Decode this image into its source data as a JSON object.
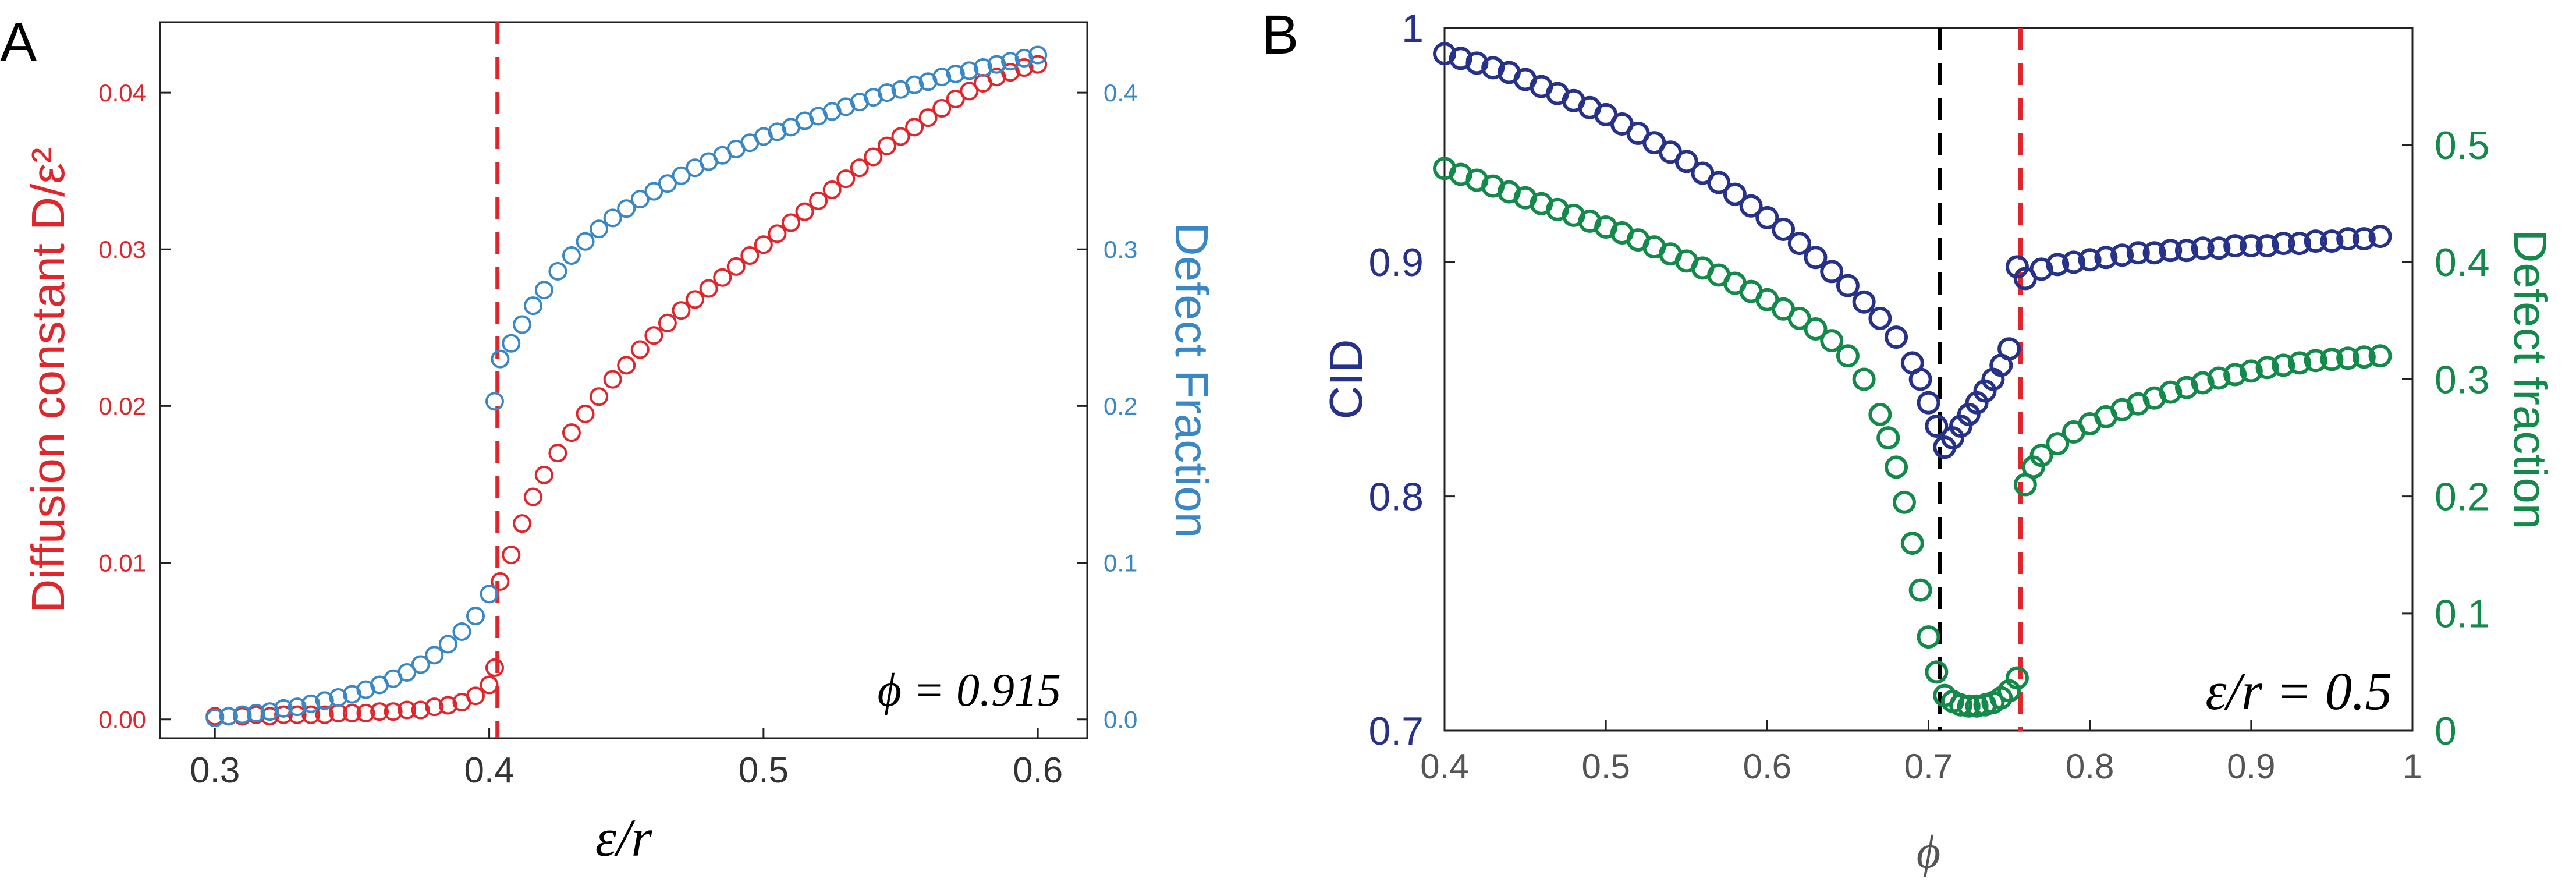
{
  "figure": {
    "panel_a_label": "A",
    "panel_b_label": "B"
  },
  "colors": {
    "red": "#e0262b",
    "blue": "#3a87c6",
    "navy": "#26328a",
    "green": "#13894a",
    "black": "#000000",
    "axis_gray": "#4a4a4a"
  },
  "chart_data": [
    {
      "type": "scatter",
      "panel": "A",
      "xlabel": "ε/r",
      "ylabel_left": "Diffusion constant  D/ε²",
      "ylabel_right": "Defect Fraction",
      "annotation": "ϕ = 0.915",
      "xlim": [
        0.28,
        0.618
      ],
      "ylim_left": [
        -0.0012,
        0.0445
      ],
      "ylim_right": [
        -0.012,
        0.445
      ],
      "x_ticks": [
        0.3,
        0.4,
        0.5,
        0.6
      ],
      "x_tick_labels": [
        "0.3",
        "0.4",
        "0.5",
        "0.6"
      ],
      "y_left_ticks": [
        0.0,
        0.01,
        0.02,
        0.03,
        0.04
      ],
      "y_left_tick_labels": [
        "0.00",
        "0.01",
        "0.02",
        "0.03",
        "0.04"
      ],
      "y_right_ticks": [
        0.0,
        0.1,
        0.2,
        0.3,
        0.4
      ],
      "y_right_tick_labels": [
        "0.0",
        "0.1",
        "0.2",
        "0.3",
        "0.4"
      ],
      "vline": {
        "x": 0.403,
        "color": "red",
        "style": "dashed"
      },
      "series": [
        {
          "name": "Diffusion constant D/ε²",
          "axis": "left",
          "color": "red",
          "x": [
            0.3,
            0.305,
            0.31,
            0.315,
            0.32,
            0.325,
            0.33,
            0.335,
            0.34,
            0.345,
            0.35,
            0.355,
            0.36,
            0.365,
            0.37,
            0.375,
            0.38,
            0.385,
            0.39,
            0.395,
            0.4,
            0.402,
            0.404,
            0.408,
            0.412,
            0.416,
            0.42,
            0.425,
            0.43,
            0.435,
            0.44,
            0.445,
            0.45,
            0.455,
            0.46,
            0.465,
            0.47,
            0.475,
            0.48,
            0.485,
            0.49,
            0.495,
            0.5,
            0.505,
            0.51,
            0.515,
            0.52,
            0.525,
            0.53,
            0.535,
            0.54,
            0.545,
            0.55,
            0.555,
            0.56,
            0.565,
            0.57,
            0.575,
            0.58,
            0.585,
            0.59,
            0.595,
            0.6
          ],
          "values": [
            0.0002,
            0.0002,
            0.0002,
            0.0003,
            0.0002,
            0.0003,
            0.0003,
            0.0003,
            0.0003,
            0.0004,
            0.0004,
            0.0004,
            0.0005,
            0.0005,
            0.0006,
            0.0006,
            0.0008,
            0.0009,
            0.0011,
            0.0015,
            0.0022,
            0.0033,
            0.0088,
            0.0105,
            0.0125,
            0.0142,
            0.0156,
            0.017,
            0.0183,
            0.0195,
            0.0206,
            0.0217,
            0.0226,
            0.0236,
            0.0245,
            0.0253,
            0.0261,
            0.0268,
            0.0275,
            0.0282,
            0.0289,
            0.0296,
            0.0303,
            0.031,
            0.0317,
            0.0324,
            0.0331,
            0.0338,
            0.0345,
            0.0352,
            0.0359,
            0.0366,
            0.0372,
            0.0378,
            0.0384,
            0.039,
            0.0396,
            0.0401,
            0.0406,
            0.041,
            0.0413,
            0.0416,
            0.0418
          ]
        },
        {
          "name": "Defect Fraction",
          "axis": "right",
          "color": "blue",
          "x": [
            0.3,
            0.305,
            0.31,
            0.315,
            0.32,
            0.325,
            0.33,
            0.335,
            0.34,
            0.345,
            0.35,
            0.355,
            0.36,
            0.365,
            0.37,
            0.375,
            0.38,
            0.385,
            0.39,
            0.395,
            0.4,
            0.402,
            0.404,
            0.408,
            0.412,
            0.416,
            0.42,
            0.425,
            0.43,
            0.435,
            0.44,
            0.445,
            0.45,
            0.455,
            0.46,
            0.465,
            0.47,
            0.475,
            0.48,
            0.485,
            0.49,
            0.495,
            0.5,
            0.505,
            0.51,
            0.515,
            0.52,
            0.525,
            0.53,
            0.535,
            0.54,
            0.545,
            0.55,
            0.555,
            0.56,
            0.565,
            0.57,
            0.575,
            0.58,
            0.585,
            0.59,
            0.595,
            0.6
          ],
          "values": [
            0.001,
            0.002,
            0.003,
            0.004,
            0.005,
            0.007,
            0.008,
            0.01,
            0.012,
            0.014,
            0.016,
            0.019,
            0.022,
            0.026,
            0.03,
            0.035,
            0.041,
            0.048,
            0.056,
            0.066,
            0.08,
            0.203,
            0.23,
            0.24,
            0.252,
            0.264,
            0.274,
            0.286,
            0.296,
            0.305,
            0.313,
            0.32,
            0.326,
            0.332,
            0.337,
            0.342,
            0.347,
            0.352,
            0.356,
            0.36,
            0.364,
            0.368,
            0.372,
            0.375,
            0.378,
            0.382,
            0.385,
            0.388,
            0.391,
            0.394,
            0.397,
            0.4,
            0.402,
            0.405,
            0.407,
            0.41,
            0.412,
            0.414,
            0.416,
            0.418,
            0.42,
            0.422,
            0.424
          ]
        }
      ]
    },
    {
      "type": "scatter",
      "panel": "B",
      "xlabel": "ϕ",
      "ylabel_left": "CID",
      "ylabel_right": "Defect fraction",
      "annotation": "ε/r = 0.5",
      "xlim": [
        0.4,
        1.0
      ],
      "ylim_left": [
        0.7,
        1.0
      ],
      "ylim_right": [
        0.0,
        0.6
      ],
      "x_ticks": [
        0.4,
        0.5,
        0.6,
        0.7,
        0.8,
        0.9,
        1.0
      ],
      "x_tick_labels": [
        "0.4",
        "0.5",
        "0.6",
        "0.7",
        "0.8",
        "0.9",
        "1"
      ],
      "y_left_ticks": [
        0.7,
        0.8,
        0.9,
        1.0
      ],
      "y_left_tick_labels": [
        "0.7",
        "0.8",
        "0.9",
        "1"
      ],
      "y_right_ticks": [
        0.0,
        0.1,
        0.2,
        0.3,
        0.4,
        0.5
      ],
      "y_right_tick_labels": [
        "0",
        "0.1",
        "0.2",
        "0.3",
        "0.4",
        "0.5"
      ],
      "vlines": [
        {
          "x": 0.707,
          "color": "black",
          "style": "dashed"
        },
        {
          "x": 0.757,
          "color": "red",
          "style": "dashed"
        }
      ],
      "series": [
        {
          "name": "CID",
          "axis": "left",
          "color": "navy",
          "x": [
            0.4,
            0.41,
            0.42,
            0.43,
            0.44,
            0.45,
            0.46,
            0.47,
            0.48,
            0.49,
            0.5,
            0.51,
            0.52,
            0.53,
            0.54,
            0.55,
            0.56,
            0.57,
            0.58,
            0.59,
            0.6,
            0.61,
            0.62,
            0.63,
            0.64,
            0.65,
            0.66,
            0.67,
            0.68,
            0.69,
            0.695,
            0.7,
            0.705,
            0.71,
            0.715,
            0.72,
            0.725,
            0.73,
            0.735,
            0.74,
            0.745,
            0.75,
            0.755,
            0.76,
            0.77,
            0.78,
            0.79,
            0.8,
            0.81,
            0.82,
            0.83,
            0.84,
            0.85,
            0.86,
            0.87,
            0.88,
            0.89,
            0.9,
            0.91,
            0.92,
            0.93,
            0.94,
            0.95,
            0.96,
            0.97,
            0.98
          ],
          "values": [
            0.989,
            0.987,
            0.985,
            0.983,
            0.981,
            0.978,
            0.975,
            0.972,
            0.969,
            0.966,
            0.963,
            0.959,
            0.955,
            0.951,
            0.947,
            0.943,
            0.938,
            0.934,
            0.929,
            0.924,
            0.919,
            0.914,
            0.908,
            0.902,
            0.896,
            0.89,
            0.883,
            0.876,
            0.868,
            0.857,
            0.85,
            0.84,
            0.83,
            0.821,
            0.825,
            0.83,
            0.835,
            0.84,
            0.845,
            0.85,
            0.856,
            0.863,
            0.898,
            0.893,
            0.897,
            0.899,
            0.9,
            0.901,
            0.902,
            0.903,
            0.904,
            0.904,
            0.905,
            0.905,
            0.906,
            0.906,
            0.907,
            0.907,
            0.907,
            0.908,
            0.908,
            0.909,
            0.909,
            0.91,
            0.91,
            0.911
          ]
        },
        {
          "name": "Defect fraction",
          "axis": "right",
          "color": "green",
          "x": [
            0.4,
            0.41,
            0.42,
            0.43,
            0.44,
            0.45,
            0.46,
            0.47,
            0.48,
            0.49,
            0.5,
            0.51,
            0.52,
            0.53,
            0.54,
            0.55,
            0.56,
            0.57,
            0.58,
            0.59,
            0.6,
            0.61,
            0.62,
            0.63,
            0.64,
            0.65,
            0.66,
            0.67,
            0.675,
            0.68,
            0.685,
            0.69,
            0.695,
            0.7,
            0.705,
            0.71,
            0.715,
            0.72,
            0.725,
            0.73,
            0.735,
            0.74,
            0.745,
            0.75,
            0.755,
            0.76,
            0.765,
            0.77,
            0.78,
            0.79,
            0.8,
            0.81,
            0.82,
            0.83,
            0.84,
            0.85,
            0.86,
            0.87,
            0.88,
            0.89,
            0.9,
            0.91,
            0.92,
            0.93,
            0.94,
            0.95,
            0.96,
            0.97,
            0.98
          ],
          "values": [
            0.48,
            0.475,
            0.47,
            0.465,
            0.46,
            0.455,
            0.45,
            0.445,
            0.44,
            0.435,
            0.43,
            0.425,
            0.419,
            0.413,
            0.407,
            0.401,
            0.395,
            0.389,
            0.382,
            0.375,
            0.368,
            0.36,
            0.352,
            0.343,
            0.333,
            0.32,
            0.3,
            0.27,
            0.25,
            0.225,
            0.195,
            0.16,
            0.12,
            0.08,
            0.05,
            0.03,
            0.025,
            0.022,
            0.021,
            0.021,
            0.022,
            0.024,
            0.028,
            0.034,
            0.045,
            0.21,
            0.225,
            0.235,
            0.245,
            0.255,
            0.262,
            0.268,
            0.274,
            0.279,
            0.284,
            0.289,
            0.293,
            0.297,
            0.301,
            0.304,
            0.307,
            0.31,
            0.312,
            0.314,
            0.316,
            0.317,
            0.318,
            0.319,
            0.32
          ]
        }
      ]
    }
  ]
}
